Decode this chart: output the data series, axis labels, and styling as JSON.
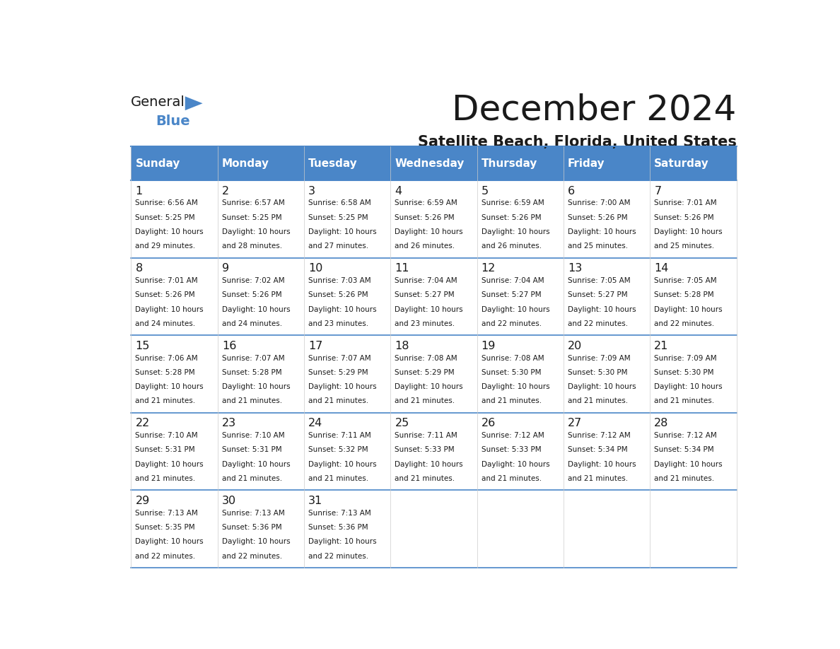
{
  "title": "December 2024",
  "subtitle": "Satellite Beach, Florida, United States",
  "header_color": "#4a86c8",
  "header_text_color": "#ffffff",
  "cell_bg_color": "#ffffff",
  "cell_border_color": "#4a86c8",
  "day_headers": [
    "Sunday",
    "Monday",
    "Tuesday",
    "Wednesday",
    "Thursday",
    "Friday",
    "Saturday"
  ],
  "days": [
    {
      "day": 1,
      "col": 0,
      "row": 0,
      "sunrise": "6:56 AM",
      "sunset": "5:25 PM",
      "daylight": "10 hours and 29 minutes."
    },
    {
      "day": 2,
      "col": 1,
      "row": 0,
      "sunrise": "6:57 AM",
      "sunset": "5:25 PM",
      "daylight": "10 hours and 28 minutes."
    },
    {
      "day": 3,
      "col": 2,
      "row": 0,
      "sunrise": "6:58 AM",
      "sunset": "5:25 PM",
      "daylight": "10 hours and 27 minutes."
    },
    {
      "day": 4,
      "col": 3,
      "row": 0,
      "sunrise": "6:59 AM",
      "sunset": "5:26 PM",
      "daylight": "10 hours and 26 minutes."
    },
    {
      "day": 5,
      "col": 4,
      "row": 0,
      "sunrise": "6:59 AM",
      "sunset": "5:26 PM",
      "daylight": "10 hours and 26 minutes."
    },
    {
      "day": 6,
      "col": 5,
      "row": 0,
      "sunrise": "7:00 AM",
      "sunset": "5:26 PM",
      "daylight": "10 hours and 25 minutes."
    },
    {
      "day": 7,
      "col": 6,
      "row": 0,
      "sunrise": "7:01 AM",
      "sunset": "5:26 PM",
      "daylight": "10 hours and 25 minutes."
    },
    {
      "day": 8,
      "col": 0,
      "row": 1,
      "sunrise": "7:01 AM",
      "sunset": "5:26 PM",
      "daylight": "10 hours and 24 minutes."
    },
    {
      "day": 9,
      "col": 1,
      "row": 1,
      "sunrise": "7:02 AM",
      "sunset": "5:26 PM",
      "daylight": "10 hours and 24 minutes."
    },
    {
      "day": 10,
      "col": 2,
      "row": 1,
      "sunrise": "7:03 AM",
      "sunset": "5:26 PM",
      "daylight": "10 hours and 23 minutes."
    },
    {
      "day": 11,
      "col": 3,
      "row": 1,
      "sunrise": "7:04 AM",
      "sunset": "5:27 PM",
      "daylight": "10 hours and 23 minutes."
    },
    {
      "day": 12,
      "col": 4,
      "row": 1,
      "sunrise": "7:04 AM",
      "sunset": "5:27 PM",
      "daylight": "10 hours and 22 minutes."
    },
    {
      "day": 13,
      "col": 5,
      "row": 1,
      "sunrise": "7:05 AM",
      "sunset": "5:27 PM",
      "daylight": "10 hours and 22 minutes."
    },
    {
      "day": 14,
      "col": 6,
      "row": 1,
      "sunrise": "7:05 AM",
      "sunset": "5:28 PM",
      "daylight": "10 hours and 22 minutes."
    },
    {
      "day": 15,
      "col": 0,
      "row": 2,
      "sunrise": "7:06 AM",
      "sunset": "5:28 PM",
      "daylight": "10 hours and 21 minutes."
    },
    {
      "day": 16,
      "col": 1,
      "row": 2,
      "sunrise": "7:07 AM",
      "sunset": "5:28 PM",
      "daylight": "10 hours and 21 minutes."
    },
    {
      "day": 17,
      "col": 2,
      "row": 2,
      "sunrise": "7:07 AM",
      "sunset": "5:29 PM",
      "daylight": "10 hours and 21 minutes."
    },
    {
      "day": 18,
      "col": 3,
      "row": 2,
      "sunrise": "7:08 AM",
      "sunset": "5:29 PM",
      "daylight": "10 hours and 21 minutes."
    },
    {
      "day": 19,
      "col": 4,
      "row": 2,
      "sunrise": "7:08 AM",
      "sunset": "5:30 PM",
      "daylight": "10 hours and 21 minutes."
    },
    {
      "day": 20,
      "col": 5,
      "row": 2,
      "sunrise": "7:09 AM",
      "sunset": "5:30 PM",
      "daylight": "10 hours and 21 minutes."
    },
    {
      "day": 21,
      "col": 6,
      "row": 2,
      "sunrise": "7:09 AM",
      "sunset": "5:30 PM",
      "daylight": "10 hours and 21 minutes."
    },
    {
      "day": 22,
      "col": 0,
      "row": 3,
      "sunrise": "7:10 AM",
      "sunset": "5:31 PM",
      "daylight": "10 hours and 21 minutes."
    },
    {
      "day": 23,
      "col": 1,
      "row": 3,
      "sunrise": "7:10 AM",
      "sunset": "5:31 PM",
      "daylight": "10 hours and 21 minutes."
    },
    {
      "day": 24,
      "col": 2,
      "row": 3,
      "sunrise": "7:11 AM",
      "sunset": "5:32 PM",
      "daylight": "10 hours and 21 minutes."
    },
    {
      "day": 25,
      "col": 3,
      "row": 3,
      "sunrise": "7:11 AM",
      "sunset": "5:33 PM",
      "daylight": "10 hours and 21 minutes."
    },
    {
      "day": 26,
      "col": 4,
      "row": 3,
      "sunrise": "7:12 AM",
      "sunset": "5:33 PM",
      "daylight": "10 hours and 21 minutes."
    },
    {
      "day": 27,
      "col": 5,
      "row": 3,
      "sunrise": "7:12 AM",
      "sunset": "5:34 PM",
      "daylight": "10 hours and 21 minutes."
    },
    {
      "day": 28,
      "col": 6,
      "row": 3,
      "sunrise": "7:12 AM",
      "sunset": "5:34 PM",
      "daylight": "10 hours and 21 minutes."
    },
    {
      "day": 29,
      "col": 0,
      "row": 4,
      "sunrise": "7:13 AM",
      "sunset": "5:35 PM",
      "daylight": "10 hours and 22 minutes."
    },
    {
      "day": 30,
      "col": 1,
      "row": 4,
      "sunrise": "7:13 AM",
      "sunset": "5:36 PM",
      "daylight": "10 hours and 22 minutes."
    },
    {
      "day": 31,
      "col": 2,
      "row": 4,
      "sunrise": "7:13 AM",
      "sunset": "5:36 PM",
      "daylight": "10 hours and 22 minutes."
    }
  ],
  "logo_text_general": "General",
  "logo_text_blue": "Blue",
  "logo_color_general": "#1a1a1a",
  "logo_color_blue": "#4a86c8",
  "logo_triangle_color": "#4a86c8"
}
